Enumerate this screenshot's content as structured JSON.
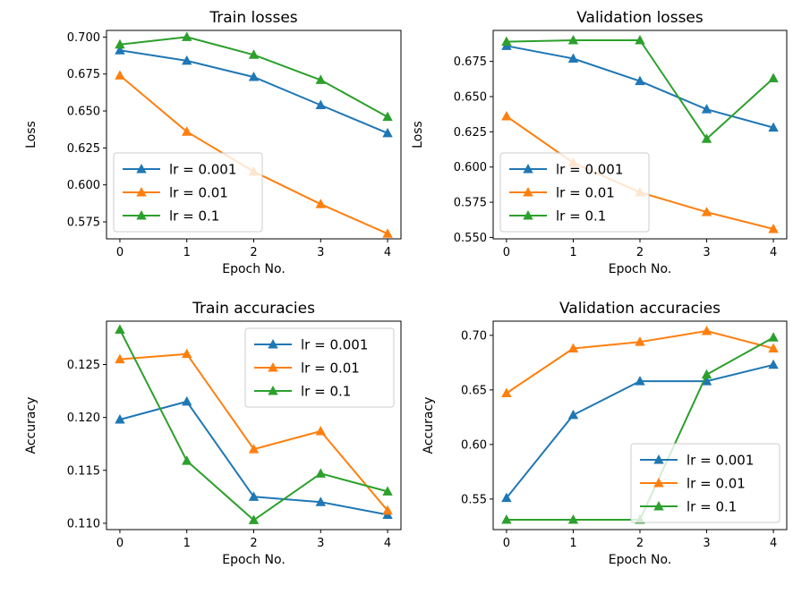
{
  "chart_data": [
    {
      "type": "line",
      "title": "Train losses",
      "xlabel": "Epoch No.",
      "ylabel": "Loss",
      "x": [
        0,
        1,
        2,
        3,
        4
      ],
      "xticks": [
        "0",
        "1",
        "2",
        "3",
        "4"
      ],
      "xlim": [
        -0.2,
        4.2
      ],
      "ylim": [
        0.5635,
        0.7045
      ],
      "yticks": [
        0.575,
        0.6,
        0.625,
        0.65,
        0.675,
        0.7
      ],
      "ytick_labels": [
        "0.575",
        "0.600",
        "0.625",
        "0.650",
        "0.675",
        "0.700"
      ],
      "legend_position": "lower left",
      "series": [
        {
          "name": "lr = 0.001",
          "color": "#1f77b4",
          "values": [
            0.691,
            0.684,
            0.673,
            0.654,
            0.635
          ]
        },
        {
          "name": "lr = 0.01",
          "color": "#ff7f0e",
          "values": [
            0.674,
            0.636,
            0.609,
            0.587,
            0.567
          ]
        },
        {
          "name": "lr = 0.1",
          "color": "#2ca02c",
          "values": [
            0.695,
            0.7,
            0.688,
            0.671,
            0.646
          ]
        }
      ]
    },
    {
      "type": "line",
      "title": "Validation losses",
      "xlabel": "Epoch No.",
      "ylabel": "Loss",
      "x": [
        0,
        1,
        2,
        3,
        4
      ],
      "xticks": [
        "0",
        "1",
        "2",
        "3",
        "4"
      ],
      "xlim": [
        -0.2,
        4.2
      ],
      "ylim": [
        0.549,
        0.697
      ],
      "yticks": [
        0.55,
        0.575,
        0.6,
        0.625,
        0.65,
        0.675
      ],
      "ytick_labels": [
        "0.550",
        "0.575",
        "0.600",
        "0.625",
        "0.650",
        "0.675"
      ],
      "legend_position": "lower left",
      "series": [
        {
          "name": "lr = 0.001",
          "color": "#1f77b4",
          "values": [
            0.686,
            0.677,
            0.661,
            0.641,
            0.628
          ]
        },
        {
          "name": "lr = 0.01",
          "color": "#ff7f0e",
          "values": [
            0.636,
            0.603,
            0.582,
            0.568,
            0.556
          ]
        },
        {
          "name": "lr = 0.1",
          "color": "#2ca02c",
          "values": [
            0.689,
            0.69,
            0.69,
            0.62,
            0.663
          ]
        }
      ]
    },
    {
      "type": "line",
      "title": "Train accuracies",
      "xlabel": "Epoch No.",
      "ylabel": "Accuracy",
      "x": [
        0,
        1,
        2,
        3,
        4
      ],
      "xticks": [
        "0",
        "1",
        "2",
        "3",
        "4"
      ],
      "xlim": [
        -0.2,
        4.2
      ],
      "ylim": [
        0.1094,
        0.1291
      ],
      "yticks": [
        0.11,
        0.115,
        0.12,
        0.125
      ],
      "ytick_labels": [
        "0.110",
        "0.115",
        "0.120",
        "0.125"
      ],
      "legend_position": "upper right",
      "series": [
        {
          "name": "lr = 0.001",
          "color": "#1f77b4",
          "values": [
            0.1198,
            0.1215,
            0.1125,
            0.112,
            0.1108
          ]
        },
        {
          "name": "lr = 0.01",
          "color": "#ff7f0e",
          "values": [
            0.1255,
            0.126,
            0.117,
            0.1187,
            0.1112
          ]
        },
        {
          "name": "lr = 0.1",
          "color": "#2ca02c",
          "values": [
            0.1283,
            0.1159,
            0.1103,
            0.1147,
            0.113
          ]
        }
      ]
    },
    {
      "type": "line",
      "title": "Validation accuracies",
      "xlabel": "Epoch No.",
      "ylabel": "Accuracy",
      "x": [
        0,
        1,
        2,
        3,
        4
      ],
      "xticks": [
        "0",
        "1",
        "2",
        "3",
        "4"
      ],
      "xlim": [
        -0.2,
        4.2
      ],
      "ylim": [
        0.522,
        0.713
      ],
      "yticks": [
        0.55,
        0.6,
        0.65,
        0.7
      ],
      "ytick_labels": [
        "0.55",
        "0.60",
        "0.65",
        "0.70"
      ],
      "legend_position": "lower right",
      "series": [
        {
          "name": "lr = 0.001",
          "color": "#1f77b4",
          "values": [
            0.551,
            0.627,
            0.658,
            0.658,
            0.673
          ]
        },
        {
          "name": "lr = 0.01",
          "color": "#ff7f0e",
          "values": [
            0.647,
            0.688,
            0.694,
            0.704,
            0.688
          ]
        },
        {
          "name": "lr = 0.1",
          "color": "#2ca02c",
          "values": [
            0.531,
            0.531,
            0.531,
            0.664,
            0.698
          ]
        }
      ]
    }
  ]
}
